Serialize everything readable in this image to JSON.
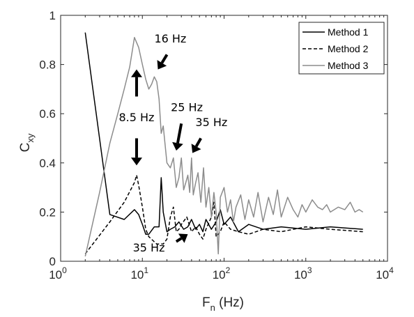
{
  "chart_data": {
    "type": "line",
    "title": "",
    "xlabel": "F",
    "xlabel_sub": "n",
    "xlabel_unit": " (Hz)",
    "ylabel": "C",
    "ylabel_sub": "xy",
    "xscale": "log",
    "xlim": [
      1,
      10000
    ],
    "ylim": [
      0,
      1
    ],
    "grid": false,
    "legend_position": "top-right",
    "x_ticks": [
      {
        "value": 1,
        "base": "10",
        "exp": "0"
      },
      {
        "value": 10,
        "base": "10",
        "exp": "1"
      },
      {
        "value": 100,
        "base": "10",
        "exp": "2"
      },
      {
        "value": 1000,
        "base": "10",
        "exp": "3"
      },
      {
        "value": 10000,
        "base": "10",
        "exp": "4"
      }
    ],
    "y_ticks": [
      {
        "value": 0,
        "label": "0"
      },
      {
        "value": 0.2,
        "label": "0.2"
      },
      {
        "value": 0.4,
        "label": "0.4"
      },
      {
        "value": 0.6,
        "label": "0.6"
      },
      {
        "value": 0.8,
        "label": "0.8"
      },
      {
        "value": 1,
        "label": "1"
      }
    ],
    "series": [
      {
        "name": "Method 1",
        "color": "#000000",
        "style": "solid",
        "x": [
          2,
          4,
          6,
          8,
          9,
          10,
          11,
          12,
          14,
          16,
          17,
          18,
          20,
          22,
          25,
          28,
          32,
          36,
          40,
          45,
          50,
          55,
          60,
          70,
          80,
          90,
          100,
          120,
          150,
          200,
          300,
          500,
          1000,
          2000,
          5000
        ],
        "y": [
          0.93,
          0.19,
          0.17,
          0.21,
          0.19,
          0.15,
          0.11,
          0.11,
          0.14,
          0.14,
          0.34,
          0.2,
          0.12,
          0.13,
          0.14,
          0.16,
          0.13,
          0.14,
          0.17,
          0.13,
          0.15,
          0.12,
          0.17,
          0.13,
          0.16,
          0.21,
          0.15,
          0.18,
          0.12,
          0.15,
          0.13,
          0.14,
          0.13,
          0.14,
          0.13
        ]
      },
      {
        "name": "Method 2",
        "color": "#000000",
        "style": "dashed",
        "x": [
          2,
          4,
          6,
          8,
          8.5,
          9,
          10,
          11,
          12,
          15,
          18,
          20,
          22,
          24,
          26,
          28,
          30,
          35,
          40,
          45,
          50,
          55,
          60,
          70,
          75,
          80,
          90,
          100,
          120,
          150,
          200,
          300,
          500,
          1000,
          2000,
          5000
        ],
        "y": [
          0.03,
          0.16,
          0.24,
          0.32,
          0.35,
          0.31,
          0.22,
          0.13,
          0.1,
          0.07,
          0.07,
          0.09,
          0.18,
          0.22,
          0.12,
          0.13,
          0.15,
          0.18,
          0.12,
          0.14,
          0.11,
          0.09,
          0.13,
          0.18,
          0.24,
          0.1,
          0.12,
          0.16,
          0.13,
          0.12,
          0.11,
          0.13,
          0.12,
          0.14,
          0.13,
          0.12
        ]
      },
      {
        "name": "Method 3",
        "color": "#8c8c8c",
        "style": "solid",
        "x": [
          2,
          3,
          4,
          5,
          6,
          7,
          8,
          9,
          10,
          11,
          12,
          13,
          14,
          15,
          16,
          17,
          18,
          20,
          22,
          24,
          26,
          28,
          30,
          32,
          34,
          36,
          38,
          40,
          42,
          45,
          48,
          52,
          56,
          60,
          65,
          70,
          75,
          80,
          85,
          90,
          100,
          110,
          120,
          130,
          140,
          160,
          180,
          200,
          230,
          260,
          300,
          350,
          400,
          450,
          500,
          600,
          700,
          800,
          900,
          1000,
          1200,
          1400,
          1600,
          1800,
          2000,
          2500,
          3000,
          3500,
          4000,
          4500,
          5000
        ],
        "y": [
          0.02,
          0.28,
          0.48,
          0.6,
          0.7,
          0.79,
          0.91,
          0.87,
          0.8,
          0.74,
          0.7,
          0.72,
          0.75,
          0.73,
          0.66,
          0.52,
          0.55,
          0.4,
          0.38,
          0.42,
          0.3,
          0.34,
          0.42,
          0.29,
          0.32,
          0.35,
          0.28,
          0.42,
          0.27,
          0.32,
          0.36,
          0.24,
          0.38,
          0.22,
          0.3,
          0.18,
          0.28,
          0.2,
          0.03,
          0.26,
          0.3,
          0.2,
          0.25,
          0.16,
          0.22,
          0.27,
          0.17,
          0.25,
          0.18,
          0.28,
          0.16,
          0.26,
          0.19,
          0.29,
          0.18,
          0.26,
          0.21,
          0.18,
          0.23,
          0.2,
          0.25,
          0.22,
          0.21,
          0.23,
          0.2,
          0.22,
          0.21,
          0.24,
          0.2,
          0.21,
          0.2
        ]
      }
    ],
    "annotations": [
      {
        "text": "16 Hz",
        "x": 22,
        "y": 0.89,
        "arrow_from": [
          20,
          0.84
        ],
        "arrow_to": [
          15.5,
          0.78
        ]
      },
      {
        "text": "8.5 Hz",
        "x": 8.5,
        "y": 0.57,
        "arrow_from": [
          8.5,
          0.67
        ],
        "arrow_to": [
          8.5,
          0.78
        ]
      },
      {
        "text": "",
        "x": 8.5,
        "y": 0.52,
        "arrow_from": [
          8.5,
          0.5
        ],
        "arrow_to": [
          8.5,
          0.39
        ]
      },
      {
        "text": "25 Hz",
        "x": 35,
        "y": 0.61,
        "arrow_from": [
          30,
          0.56
        ],
        "arrow_to": [
          26,
          0.45
        ]
      },
      {
        "text": "35 Hz",
        "x": 70,
        "y": 0.55,
        "arrow_from": [
          52,
          0.5
        ],
        "arrow_to": [
          41,
          0.44
        ]
      },
      {
        "text": "35 Hz",
        "x": 12,
        "y": 0.04,
        "arrow_from": [
          26,
          0.08
        ],
        "arrow_to": [
          36,
          0.11
        ]
      }
    ]
  }
}
